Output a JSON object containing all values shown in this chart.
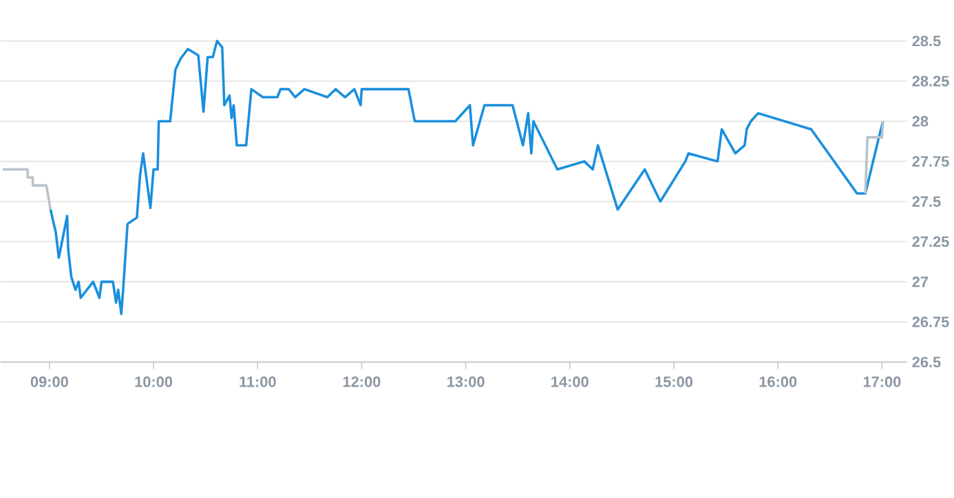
{
  "chart_data": {
    "type": "line",
    "xlim": [
      8.53,
      17.24
    ],
    "ylim": [
      26.5,
      28.5
    ],
    "xticks": [
      {
        "value": 9,
        "label": "09:00"
      },
      {
        "value": 10,
        "label": "10:00"
      },
      {
        "value": 11,
        "label": "11:00"
      },
      {
        "value": 12,
        "label": "12:00"
      },
      {
        "value": 13,
        "label": "13:00"
      },
      {
        "value": 14,
        "label": "14:00"
      },
      {
        "value": 15,
        "label": "15:00"
      },
      {
        "value": 16,
        "label": "16:00"
      },
      {
        "value": 17,
        "label": "17:00"
      }
    ],
    "yticks": [
      26.5,
      26.75,
      27,
      27.25,
      27.5,
      27.75,
      28,
      28.25,
      28.5
    ],
    "grid": "y",
    "series": [
      {
        "color": "#b8c2cc",
        "x": [
          8.55,
          8.79,
          8.79,
          8.84,
          8.84,
          8.97,
          9.01
        ],
        "values": [
          27.7,
          27.7,
          27.65,
          27.65,
          27.6,
          27.6,
          27.45
        ]
      },
      {
        "color": "#1a8fdd",
        "x": [
          9.01,
          9.06,
          9.09,
          9.17,
          9.18,
          9.21,
          9.25,
          9.28,
          9.3,
          9.42,
          9.48,
          9.5,
          9.61,
          9.64,
          9.66,
          9.69,
          9.71,
          9.75,
          9.84,
          9.87,
          9.9,
          9.97,
          10.0,
          10.04,
          10.05,
          10.16,
          10.21,
          10.26,
          10.33,
          10.43,
          10.48,
          10.52,
          10.57,
          10.61,
          10.66,
          10.68,
          10.73,
          10.75,
          10.77,
          10.8,
          10.89,
          10.94,
          11.05,
          11.19,
          11.22,
          11.3,
          11.36,
          11.45,
          11.67,
          11.75,
          11.84,
          11.93,
          11.99,
          12.0,
          12.45,
          12.51,
          12.9,
          13.04,
          13.07,
          13.18,
          13.45,
          13.55,
          13.6,
          13.63,
          13.65,
          13.88,
          14.14,
          14.22,
          14.27,
          14.46,
          14.72,
          14.87,
          15.11,
          15.14,
          15.42,
          15.46,
          15.59,
          15.68,
          15.7,
          15.74,
          15.81,
          16.32,
          16.76,
          16.84,
          16.97,
          17.01
        ],
        "values": [
          27.45,
          27.31,
          27.15,
          27.41,
          27.2,
          27.03,
          26.95,
          27.0,
          26.9,
          27.0,
          26.9,
          27.0,
          27.0,
          26.87,
          26.95,
          26.8,
          26.97,
          27.36,
          27.4,
          27.66,
          27.8,
          27.46,
          27.7,
          27.7,
          28.0,
          28.0,
          28.32,
          28.39,
          28.45,
          28.41,
          28.06,
          28.4,
          28.4,
          28.5,
          28.46,
          28.1,
          28.16,
          28.02,
          28.1,
          27.85,
          27.85,
          28.2,
          28.15,
          28.15,
          28.2,
          28.2,
          28.15,
          28.2,
          28.15,
          28.2,
          28.15,
          28.2,
          28.1,
          28.2,
          28.2,
          28.0,
          28.0,
          28.1,
          27.85,
          28.1,
          28.1,
          27.85,
          28.05,
          27.8,
          28.0,
          27.7,
          27.75,
          27.7,
          27.85,
          27.45,
          27.7,
          27.5,
          27.75,
          27.8,
          27.75,
          27.95,
          27.8,
          27.85,
          27.95,
          28.0,
          28.05,
          27.95,
          27.55,
          27.55,
          27.9,
          28.0
        ]
      },
      {
        "color": "#b8c2cc",
        "x": [
          16.84,
          16.86,
          17.0,
          17.01
        ],
        "values": [
          27.55,
          27.9,
          27.9,
          28.0
        ]
      }
    ]
  }
}
